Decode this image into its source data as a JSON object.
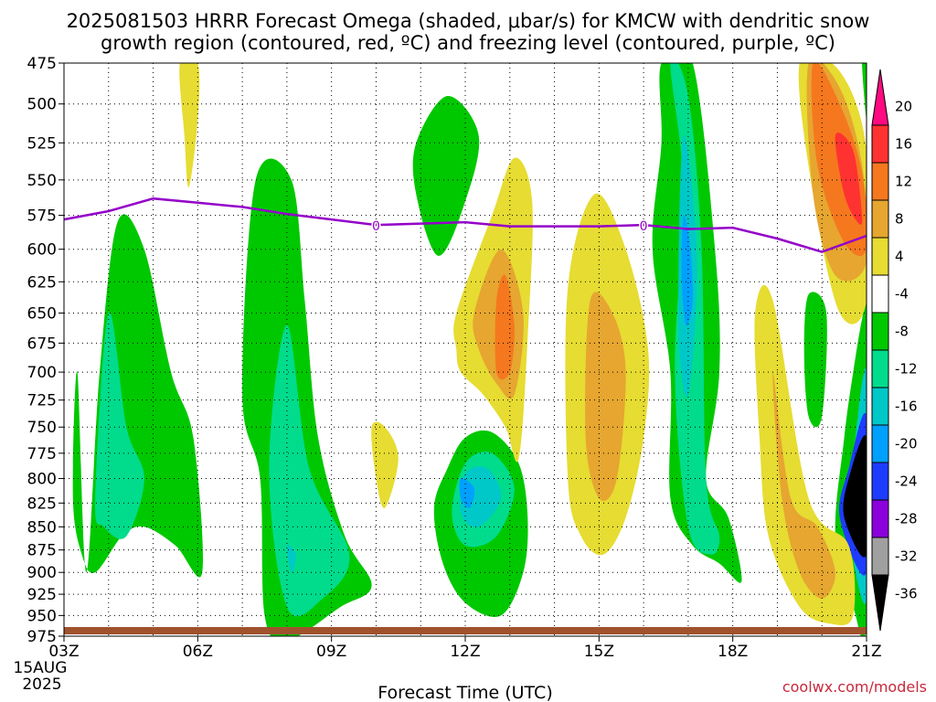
{
  "chart_data": {
    "type": "contour",
    "title_line1": "2025081503 HRRR Forecast Omega (shaded, μbar/s) for KMCW with dendritic snow",
    "title_line2": "growth region (contoured, red, ºC) and freezing level (contoured, purple, ºC)",
    "xlabel": "Forecast Time (UTC)",
    "credit": "coolwx.com/models",
    "date_line1": "15AUG",
    "date_line2": "2025",
    "x_ticks": [
      "03Z",
      "06Z",
      "09Z",
      "12Z",
      "15Z",
      "18Z",
      "21Z"
    ],
    "x_hours": [
      3,
      6,
      9,
      12,
      15,
      18,
      21
    ],
    "xlim": [
      3,
      21
    ],
    "y_ticks": [
      475,
      500,
      525,
      550,
      575,
      600,
      625,
      650,
      675,
      700,
      725,
      750,
      775,
      800,
      825,
      850,
      875,
      900,
      925,
      950,
      975
    ],
    "ylim": [
      975,
      475
    ],
    "y_scale": "log-pressure",
    "grid": true,
    "colorbar": {
      "labels": [
        "20",
        "16",
        "12",
        "8",
        "4",
        "-4",
        "-8",
        "-12",
        "-16",
        "-20",
        "-24",
        "-28",
        "-32",
        "-36"
      ],
      "colors": [
        "#ff0a80",
        "#ff3232",
        "#f5781e",
        "#e6a630",
        "#e6dc32",
        "#ffffff",
        "#00c800",
        "#00dc8c",
        "#00c8c8",
        "#00a0ff",
        "#1e3cff",
        "#8c00dc",
        "#a0a0a0",
        "#000000"
      ]
    },
    "freezing_level": {
      "label": "0",
      "color": "#9400c8",
      "x": [
        3,
        4,
        5,
        6,
        7,
        8,
        9,
        10,
        11,
        12,
        13,
        14,
        15,
        16,
        17,
        18,
        19,
        20,
        21
      ],
      "p": [
        578,
        572,
        563,
        566,
        569,
        574,
        578,
        582,
        581,
        580,
        583,
        583,
        583,
        582,
        585,
        584,
        592,
        602,
        590
      ]
    },
    "omega_regions": [
      {
        "level": -8,
        "x": [
          3.5,
          3.8,
          4.2,
          4.8,
          5.4,
          5.9,
          6.1,
          5.5,
          4.8,
          4.3,
          3.7,
          3.4,
          3.2,
          3.3
        ],
        "p": [
          900,
          700,
          580,
          600,
          700,
          760,
          900,
          870,
          850,
          860,
          900,
          880,
          820,
          700
        ]
      },
      {
        "level": -12,
        "x": [
          3.7,
          4.0,
          4.4,
          4.8,
          4.4,
          3.9
        ],
        "p": [
          820,
          650,
          750,
          800,
          860,
          850
        ]
      },
      {
        "level": -8,
        "x": [
          7.3,
          8.1,
          8.4,
          8.7,
          9.3,
          9.9,
          9.2,
          8.0,
          7.5,
          7.4,
          7.0
        ],
        "p": [
          550,
          550,
          640,
          760,
          860,
          915,
          940,
          980,
          950,
          800,
          720
        ]
      },
      {
        "level": -12,
        "x": [
          7.6,
          8.0,
          8.5,
          9.4,
          8.8,
          8.0
        ],
        "p": [
          790,
          660,
          790,
          880,
          930,
          940
        ]
      },
      {
        "level": -16,
        "x": [
          8.0,
          8.2,
          8.1
        ],
        "p": [
          870,
          880,
          900
        ]
      },
      {
        "level": -8,
        "x": [
          10.9,
          11.6,
          12.3,
          12.0,
          11.4,
          10.9
        ],
        "p": [
          525,
          495,
          520,
          565,
          605,
          560
        ]
      },
      {
        "level": -8,
        "x": [
          12.0,
          12.6,
          13.2,
          13.4,
          13.3,
          12.8,
          12.0,
          11.5,
          11.3,
          11.6
        ],
        "p": [
          760,
          755,
          785,
          840,
          900,
          950,
          935,
          890,
          830,
          790
        ]
      },
      {
        "level": -12,
        "x": [
          12.0,
          12.6,
          13.1,
          12.7,
          12.0,
          11.7
        ],
        "p": [
          785,
          775,
          810,
          860,
          870,
          835
        ]
      },
      {
        "level": -16,
        "x": [
          12.0,
          12.5,
          12.8,
          12.3,
          11.9
        ],
        "p": [
          795,
          790,
          820,
          850,
          835
        ]
      },
      {
        "level": -20,
        "x": [
          11.9,
          12.2,
          12.1,
          11.9
        ],
        "p": [
          800,
          810,
          830,
          820
        ]
      },
      {
        "level": -8,
        "x": [
          16.4,
          17.1,
          17.6,
          17.7,
          17.4,
          17.9,
          18.2,
          17.7,
          17.1,
          16.6,
          16.6,
          16.2,
          16.4
        ],
        "p": [
          475,
          475,
          600,
          700,
          800,
          840,
          910,
          890,
          870,
          820,
          700,
          600,
          525
        ]
      },
      {
        "level": -12,
        "x": [
          16.6,
          17.0,
          17.3,
          17.4,
          17.7,
          17.5,
          17.0,
          16.7,
          16.9
        ],
        "p": [
          475,
          495,
          600,
          800,
          860,
          880,
          850,
          700,
          560
        ]
      },
      {
        "level": -16,
        "x": [
          16.9,
          17.1,
          17.2,
          17.0,
          16.8,
          16.8
        ],
        "p": [
          520,
          560,
          630,
          720,
          680,
          580
        ]
      },
      {
        "level": -20,
        "x": [
          16.9,
          17.05,
          17.1,
          16.95,
          16.85
        ],
        "p": [
          575,
          600,
          640,
          660,
          620
        ]
      },
      {
        "level": -8,
        "x": [
          19.7,
          20.1,
          20.0,
          19.7,
          19.6
        ],
        "p": [
          635,
          650,
          740,
          740,
          680
        ]
      },
      {
        "level": -8,
        "x": [
          20.9,
          21.0,
          21.0,
          20.7,
          20.3,
          20.5,
          20.7
        ],
        "p": [
          655,
          650,
          955,
          940,
          860,
          760,
          700
        ]
      },
      {
        "level": -16,
        "x": [
          21.0,
          21.0,
          20.6,
          20.7
        ],
        "p": [
          700,
          930,
          850,
          780
        ]
      },
      {
        "level": -24,
        "x": [
          21.0,
          21.0,
          20.4,
          20.6
        ],
        "p": [
          740,
          900,
          840,
          790
        ]
      },
      {
        "level": -36,
        "x": [
          21.0,
          21.0,
          20.5,
          20.6
        ],
        "p": [
          760,
          880,
          840,
          800
        ]
      },
      {
        "level": -8,
        "x": [
          20.9,
          21.0,
          21.0
        ],
        "p": [
          475,
          475,
          510
        ]
      }
    ],
    "omega_positive_regions": [
      {
        "level": 4,
        "x": [
          5.6,
          6.0,
          6.0,
          5.8,
          5.7
        ],
        "p": [
          475,
          475,
          510,
          555,
          520
        ]
      },
      {
        "level": 4,
        "x": [
          9.9,
          10.2,
          10.5,
          10.2,
          10.0
        ],
        "p": [
          750,
          750,
          780,
          830,
          800
        ]
      },
      {
        "level": 4,
        "x": [
          11.8,
          12.6,
          13.1,
          13.5,
          13.4,
          13.2,
          12.9,
          12.4,
          11.9,
          11.8
        ],
        "p": [
          650,
          575,
          535,
          565,
          670,
          780,
          750,
          720,
          700,
          680
        ]
      },
      {
        "level": 8,
        "x": [
          12.2,
          12.8,
          13.3,
          13.1,
          12.7,
          12.3
        ],
        "p": [
          650,
          600,
          650,
          720,
          710,
          680
        ]
      },
      {
        "level": 12,
        "x": [
          12.7,
          12.9,
          13.1,
          13.0,
          12.7
        ],
        "p": [
          640,
          620,
          660,
          700,
          700
        ]
      },
      {
        "level": 4,
        "x": [
          14.3,
          14.9,
          15.6,
          16.1,
          16.0,
          15.6,
          15.1,
          14.6,
          14.3
        ],
        "p": [
          630,
          560,
          600,
          680,
          760,
          840,
          880,
          860,
          800
        ]
      },
      {
        "level": 8,
        "x": [
          14.8,
          15.3,
          15.6,
          15.4,
          15.0,
          14.7
        ],
        "p": [
          640,
          650,
          700,
          800,
          820,
          760
        ]
      },
      {
        "level": 4,
        "x": [
          18.5,
          18.9,
          19.7,
          20.6,
          20.7,
          20.2,
          19.5,
          18.8,
          18.6
        ],
        "p": [
          650,
          640,
          820,
          870,
          950,
          960,
          940,
          860,
          760
        ]
      },
      {
        "level": 8,
        "x": [
          18.9,
          19.3,
          19.9,
          20.3,
          20.0,
          19.5,
          19.1
        ],
        "p": [
          700,
          820,
          850,
          900,
          930,
          900,
          820
        ]
      },
      {
        "level": 4,
        "x": [
          19.5,
          20.4,
          21.0,
          21.0,
          20.4,
          19.8
        ],
        "p": [
          475,
          480,
          530,
          640,
          650,
          560
        ]
      },
      {
        "level": 8,
        "x": [
          19.7,
          20.4,
          20.9,
          21.0,
          20.3,
          19.8
        ],
        "p": [
          475,
          490,
          540,
          610,
          620,
          560
        ]
      },
      {
        "level": 12,
        "x": [
          19.8,
          20.4,
          20.9,
          21.0,
          20.5,
          19.9
        ],
        "p": [
          475,
          500,
          545,
          600,
          595,
          540
        ]
      },
      {
        "level": 16,
        "x": [
          20.3,
          20.7,
          20.9,
          20.8,
          20.5
        ],
        "p": [
          520,
          530,
          575,
          580,
          560
        ]
      }
    ]
  }
}
